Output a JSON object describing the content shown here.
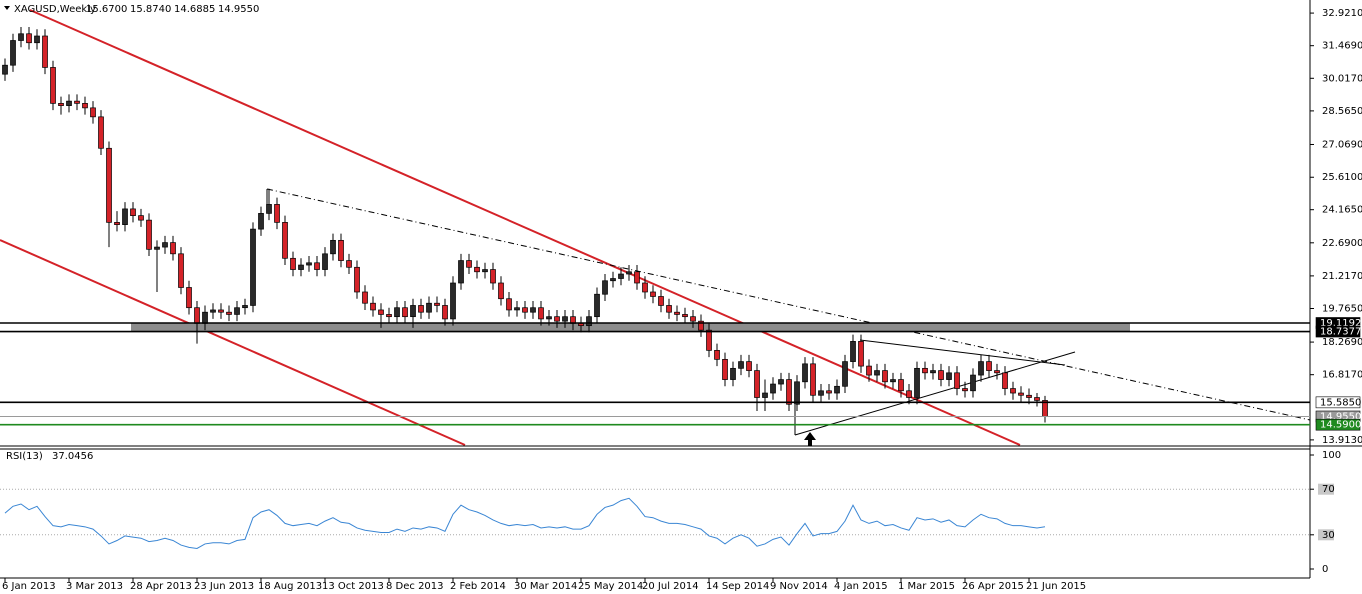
{
  "chart_data": [
    {
      "type": "candlestick",
      "title": "XAGUSD,Weekly",
      "header_labels": [
        "15.6700",
        "15.8740",
        "14.6885",
        "14.9550"
      ],
      "up_color": "#2a2a2a",
      "down_color": "#d42228",
      "categories": [
        "6 Jan 2013",
        null,
        null,
        null,
        null,
        null,
        null,
        null,
        "3 Mar 2013",
        null,
        null,
        null,
        null,
        null,
        null,
        null,
        "28 Apr 2013",
        null,
        null,
        null,
        null,
        null,
        null,
        null,
        "23 Jun 2013",
        null,
        null,
        null,
        null,
        null,
        null,
        null,
        "18 Aug 2013",
        null,
        null,
        null,
        null,
        null,
        null,
        null,
        "13 Oct 2013",
        null,
        null,
        null,
        null,
        null,
        null,
        null,
        "8 Dec 2013",
        null,
        null,
        null,
        null,
        null,
        null,
        null,
        "2 Feb 2014",
        null,
        null,
        null,
        null,
        null,
        null,
        null,
        "30 Mar 2014",
        null,
        null,
        null,
        null,
        null,
        null,
        null,
        "25 May 2014",
        null,
        null,
        null,
        null,
        null,
        null,
        null,
        "20 Jul 2014",
        null,
        null,
        null,
        null,
        null,
        null,
        null,
        "14 Sep 2014",
        null,
        null,
        null,
        null,
        null,
        null,
        null,
        "9 Nov 2014",
        null,
        null,
        null,
        null,
        null,
        null,
        null,
        "4 Jan 2015",
        null,
        null,
        null,
        null,
        null,
        null,
        null,
        "1 Mar 2015",
        null,
        null,
        null,
        null,
        null,
        null,
        null,
        "26 Apr 2015",
        null,
        null,
        null,
        null,
        null,
        null,
        null,
        "21 Jun 2015",
        null,
        null
      ],
      "ohlc": [
        [
          30.2,
          30.9,
          29.9,
          30.6
        ],
        [
          30.6,
          32.0,
          30.3,
          31.7
        ],
        [
          31.7,
          32.3,
          31.4,
          32.0
        ],
        [
          32.0,
          32.3,
          31.3,
          31.6
        ],
        [
          31.6,
          32.2,
          31.3,
          31.9
        ],
        [
          31.9,
          32.2,
          30.2,
          30.5
        ],
        [
          30.5,
          30.8,
          28.6,
          28.9
        ],
        [
          28.9,
          29.2,
          28.4,
          28.8
        ],
        [
          28.8,
          29.3,
          28.5,
          29.0
        ],
        [
          29.0,
          29.3,
          28.6,
          28.9
        ],
        [
          28.9,
          29.2,
          28.4,
          28.7
        ],
        [
          28.7,
          29.0,
          28.0,
          28.3
        ],
        [
          28.3,
          28.6,
          26.6,
          26.9
        ],
        [
          26.9,
          27.2,
          22.5,
          23.6
        ],
        [
          23.6,
          24.1,
          23.2,
          23.5
        ],
        [
          23.5,
          24.5,
          23.2,
          24.2
        ],
        [
          24.2,
          24.5,
          23.6,
          23.9
        ],
        [
          23.9,
          24.2,
          23.4,
          23.7
        ],
        [
          23.7,
          24.0,
          22.1,
          22.4
        ],
        [
          22.4,
          22.8,
          20.5,
          22.5
        ],
        [
          22.5,
          23.0,
          22.2,
          22.7
        ],
        [
          22.7,
          23.0,
          21.9,
          22.2
        ],
        [
          22.2,
          22.5,
          20.4,
          20.7
        ],
        [
          20.7,
          21.0,
          19.5,
          19.8
        ],
        [
          19.8,
          20.1,
          18.2,
          19.1
        ],
        [
          19.1,
          19.9,
          18.8,
          19.6
        ],
        [
          19.6,
          20.0,
          19.3,
          19.7
        ],
        [
          19.7,
          20.0,
          19.3,
          19.6
        ],
        [
          19.6,
          19.9,
          19.2,
          19.5
        ],
        [
          19.5,
          20.1,
          19.2,
          19.8
        ],
        [
          19.8,
          20.2,
          19.5,
          19.9
        ],
        [
          19.9,
          23.6,
          19.6,
          23.3
        ],
        [
          23.3,
          24.3,
          23.0,
          24.0
        ],
        [
          24.0,
          25.1,
          23.7,
          24.4
        ],
        [
          24.4,
          24.7,
          23.3,
          23.6
        ],
        [
          23.6,
          23.9,
          21.7,
          22.0
        ],
        [
          22.0,
          22.3,
          21.2,
          21.5
        ],
        [
          21.5,
          22.0,
          21.2,
          21.7
        ],
        [
          21.7,
          22.1,
          21.4,
          21.8
        ],
        [
          21.8,
          22.1,
          21.2,
          21.5
        ],
        [
          21.5,
          22.5,
          21.2,
          22.2
        ],
        [
          22.2,
          23.1,
          21.9,
          22.8
        ],
        [
          22.8,
          23.1,
          21.6,
          21.9
        ],
        [
          21.9,
          22.2,
          21.3,
          21.6
        ],
        [
          21.6,
          21.9,
          20.2,
          20.5
        ],
        [
          20.5,
          20.8,
          19.7,
          20.0
        ],
        [
          20.0,
          20.3,
          19.4,
          19.7
        ],
        [
          19.7,
          20.0,
          18.9,
          19.5
        ],
        [
          19.5,
          19.8,
          19.1,
          19.4
        ],
        [
          19.4,
          20.1,
          19.1,
          19.8
        ],
        [
          19.8,
          20.1,
          19.1,
          19.4
        ],
        [
          19.4,
          20.2,
          18.9,
          19.9
        ],
        [
          19.9,
          20.2,
          19.3,
          19.6
        ],
        [
          19.6,
          20.3,
          19.3,
          20.0
        ],
        [
          20.0,
          20.3,
          19.6,
          19.9
        ],
        [
          19.9,
          20.2,
          19.0,
          19.3
        ],
        [
          19.3,
          21.2,
          19.0,
          20.9
        ],
        [
          20.9,
          22.2,
          20.6,
          21.9
        ],
        [
          21.9,
          22.2,
          21.3,
          21.6
        ],
        [
          21.6,
          21.9,
          21.1,
          21.4
        ],
        [
          21.4,
          21.8,
          21.1,
          21.5
        ],
        [
          21.5,
          21.8,
          20.6,
          20.9
        ],
        [
          20.9,
          21.2,
          19.9,
          20.2
        ],
        [
          20.2,
          20.5,
          19.4,
          19.7
        ],
        [
          19.7,
          20.1,
          19.4,
          19.8
        ],
        [
          19.8,
          20.1,
          19.3,
          19.6
        ],
        [
          19.6,
          20.1,
          19.3,
          19.8
        ],
        [
          19.8,
          20.1,
          19.0,
          19.3
        ],
        [
          19.3,
          19.7,
          19.0,
          19.4
        ],
        [
          19.4,
          19.7,
          18.9,
          19.2
        ],
        [
          19.2,
          19.7,
          18.9,
          19.4
        ],
        [
          19.4,
          19.7,
          18.8,
          19.1
        ],
        [
          19.1,
          19.4,
          18.7,
          19.0
        ],
        [
          19.0,
          19.7,
          18.7,
          19.4
        ],
        [
          19.4,
          20.7,
          19.1,
          20.4
        ],
        [
          20.4,
          21.3,
          20.1,
          21.0
        ],
        [
          21.0,
          21.4,
          20.7,
          21.1
        ],
        [
          21.1,
          21.6,
          20.8,
          21.3
        ],
        [
          21.3,
          21.7,
          21.0,
          21.4
        ],
        [
          21.4,
          21.7,
          20.6,
          20.9
        ],
        [
          20.9,
          21.2,
          20.2,
          20.5
        ],
        [
          20.5,
          20.8,
          20.0,
          20.3
        ],
        [
          20.3,
          20.6,
          19.6,
          19.9
        ],
        [
          19.9,
          20.2,
          19.3,
          19.6
        ],
        [
          19.6,
          19.9,
          19.2,
          19.5
        ],
        [
          19.5,
          19.8,
          19.1,
          19.4
        ],
        [
          19.4,
          19.7,
          18.9,
          19.2
        ],
        [
          19.2,
          19.5,
          18.5,
          18.8
        ],
        [
          18.8,
          19.1,
          17.6,
          17.9
        ],
        [
          17.9,
          18.2,
          17.2,
          17.5
        ],
        [
          17.5,
          17.8,
          16.3,
          16.6
        ],
        [
          16.6,
          17.4,
          16.3,
          17.1
        ],
        [
          17.1,
          17.7,
          16.8,
          17.4
        ],
        [
          17.4,
          17.7,
          16.7,
          17.0
        ],
        [
          17.0,
          17.3,
          15.2,
          15.8
        ],
        [
          15.8,
          16.6,
          15.2,
          16.0
        ],
        [
          16.0,
          16.7,
          15.7,
          16.4
        ],
        [
          16.4,
          16.9,
          16.1,
          16.6
        ],
        [
          16.6,
          16.9,
          15.2,
          15.5
        ],
        [
          15.5,
          16.8,
          15.2,
          16.5
        ],
        [
          16.5,
          17.6,
          16.2,
          17.3
        ],
        [
          17.3,
          17.6,
          15.6,
          15.9
        ],
        [
          15.9,
          16.4,
          15.6,
          16.1
        ],
        [
          16.1,
          16.4,
          15.7,
          16.0
        ],
        [
          16.0,
          16.6,
          15.7,
          16.3
        ],
        [
          16.3,
          17.7,
          16.0,
          17.4
        ],
        [
          17.4,
          18.6,
          17.1,
          18.3
        ],
        [
          18.3,
          18.6,
          16.9,
          17.2
        ],
        [
          17.2,
          17.5,
          16.5,
          16.8
        ],
        [
          16.8,
          17.3,
          16.5,
          17.0
        ],
        [
          17.0,
          17.3,
          16.2,
          16.5
        ],
        [
          16.5,
          16.9,
          16.2,
          16.6
        ],
        [
          16.6,
          16.9,
          15.8,
          16.1
        ],
        [
          16.1,
          16.4,
          15.5,
          15.8
        ],
        [
          15.8,
          17.4,
          15.5,
          17.1
        ],
        [
          17.1,
          17.4,
          16.6,
          16.9
        ],
        [
          16.9,
          17.3,
          16.6,
          17.0
        ],
        [
          17.0,
          17.3,
          16.3,
          16.6
        ],
        [
          16.6,
          17.2,
          16.3,
          16.9
        ],
        [
          16.9,
          17.2,
          15.9,
          16.2
        ],
        [
          16.2,
          16.5,
          15.8,
          16.1
        ],
        [
          16.1,
          17.1,
          15.8,
          16.8
        ],
        [
          16.8,
          17.7,
          16.5,
          17.4
        ],
        [
          17.4,
          17.7,
          16.7,
          17.0
        ],
        [
          17.0,
          17.3,
          16.6,
          16.9
        ],
        [
          16.9,
          17.2,
          15.9,
          16.2
        ],
        [
          16.2,
          16.5,
          15.7,
          16.0
        ],
        [
          16.0,
          16.3,
          15.6,
          15.9
        ],
        [
          15.9,
          16.2,
          15.5,
          15.8
        ],
        [
          15.8,
          16.0,
          15.4,
          15.67
        ],
        [
          15.67,
          15.874,
          14.6885,
          14.955
        ]
      ],
      "ylim": [
        13.73,
        33.37
      ],
      "yticks": [
        {
          "value": 32.921,
          "label": "32.9210"
        },
        {
          "value": 31.469,
          "label": "31.4690"
        },
        {
          "value": 30.017,
          "label": "30.0170"
        },
        {
          "value": 28.565,
          "label": "28.5650"
        },
        {
          "value": 27.069,
          "label": "27.0690"
        },
        {
          "value": 25.61,
          "label": "25.6100"
        },
        {
          "value": 24.165,
          "label": "24.1650"
        },
        {
          "value": 22.69,
          "label": "22.6900"
        },
        {
          "value": 21.217,
          "label": "21.2170"
        },
        {
          "value": 19.765,
          "label": "19.7650"
        },
        {
          "value": 18.269,
          "label": "18.2690"
        },
        {
          "value": 16.817,
          "label": "16.8170"
        },
        {
          "value": 13.913,
          "label": "13.9130"
        }
      ],
      "levels": [
        {
          "value": 19.1192,
          "label": "19.1192",
          "color": "#000000"
        },
        {
          "value": 18.7377,
          "label": "18.7377",
          "color": "#000000"
        },
        {
          "value": 15.585,
          "label": "15.5850",
          "color": "#000000"
        },
        {
          "value": 14.955,
          "label": "14.9550",
          "color": "#9a9a9a"
        },
        {
          "value": 14.59,
          "label": "14.5900",
          "color": "#1f8a1f"
        }
      ]
    },
    {
      "type": "line",
      "title": "RSI(13)",
      "color": "#3a86d4",
      "values": [
        49,
        55,
        57,
        52,
        55,
        46,
        38,
        37,
        39,
        38,
        37,
        35,
        29,
        22,
        25,
        29,
        28,
        27,
        24,
        25,
        27,
        25,
        21,
        19,
        18,
        22,
        23,
        23,
        22,
        25,
        26,
        45,
        50,
        52,
        47,
        40,
        38,
        39,
        40,
        38,
        42,
        45,
        41,
        40,
        36,
        34,
        33,
        32,
        32,
        35,
        33,
        36,
        35,
        37,
        36,
        33,
        48,
        56,
        52,
        50,
        47,
        43,
        40,
        38,
        39,
        38,
        39,
        36,
        37,
        36,
        37,
        35,
        35,
        38,
        48,
        54,
        56,
        60,
        62,
        55,
        46,
        45,
        42,
        40,
        40,
        39,
        37,
        35,
        29,
        27,
        22,
        27,
        30,
        27,
        20,
        22,
        26,
        28,
        21,
        31,
        40,
        29,
        31,
        31,
        33,
        42,
        56,
        43,
        40,
        42,
        38,
        39,
        36,
        34,
        45,
        43,
        44,
        41,
        43,
        38,
        37,
        43,
        48,
        45,
        44,
        40,
        38,
        38,
        37,
        36,
        37.0456
      ],
      "ylim": [
        0,
        100
      ],
      "yticks": [
        100,
        70,
        30,
        0
      ],
      "levels": [
        70,
        30
      ]
    }
  ]
}
